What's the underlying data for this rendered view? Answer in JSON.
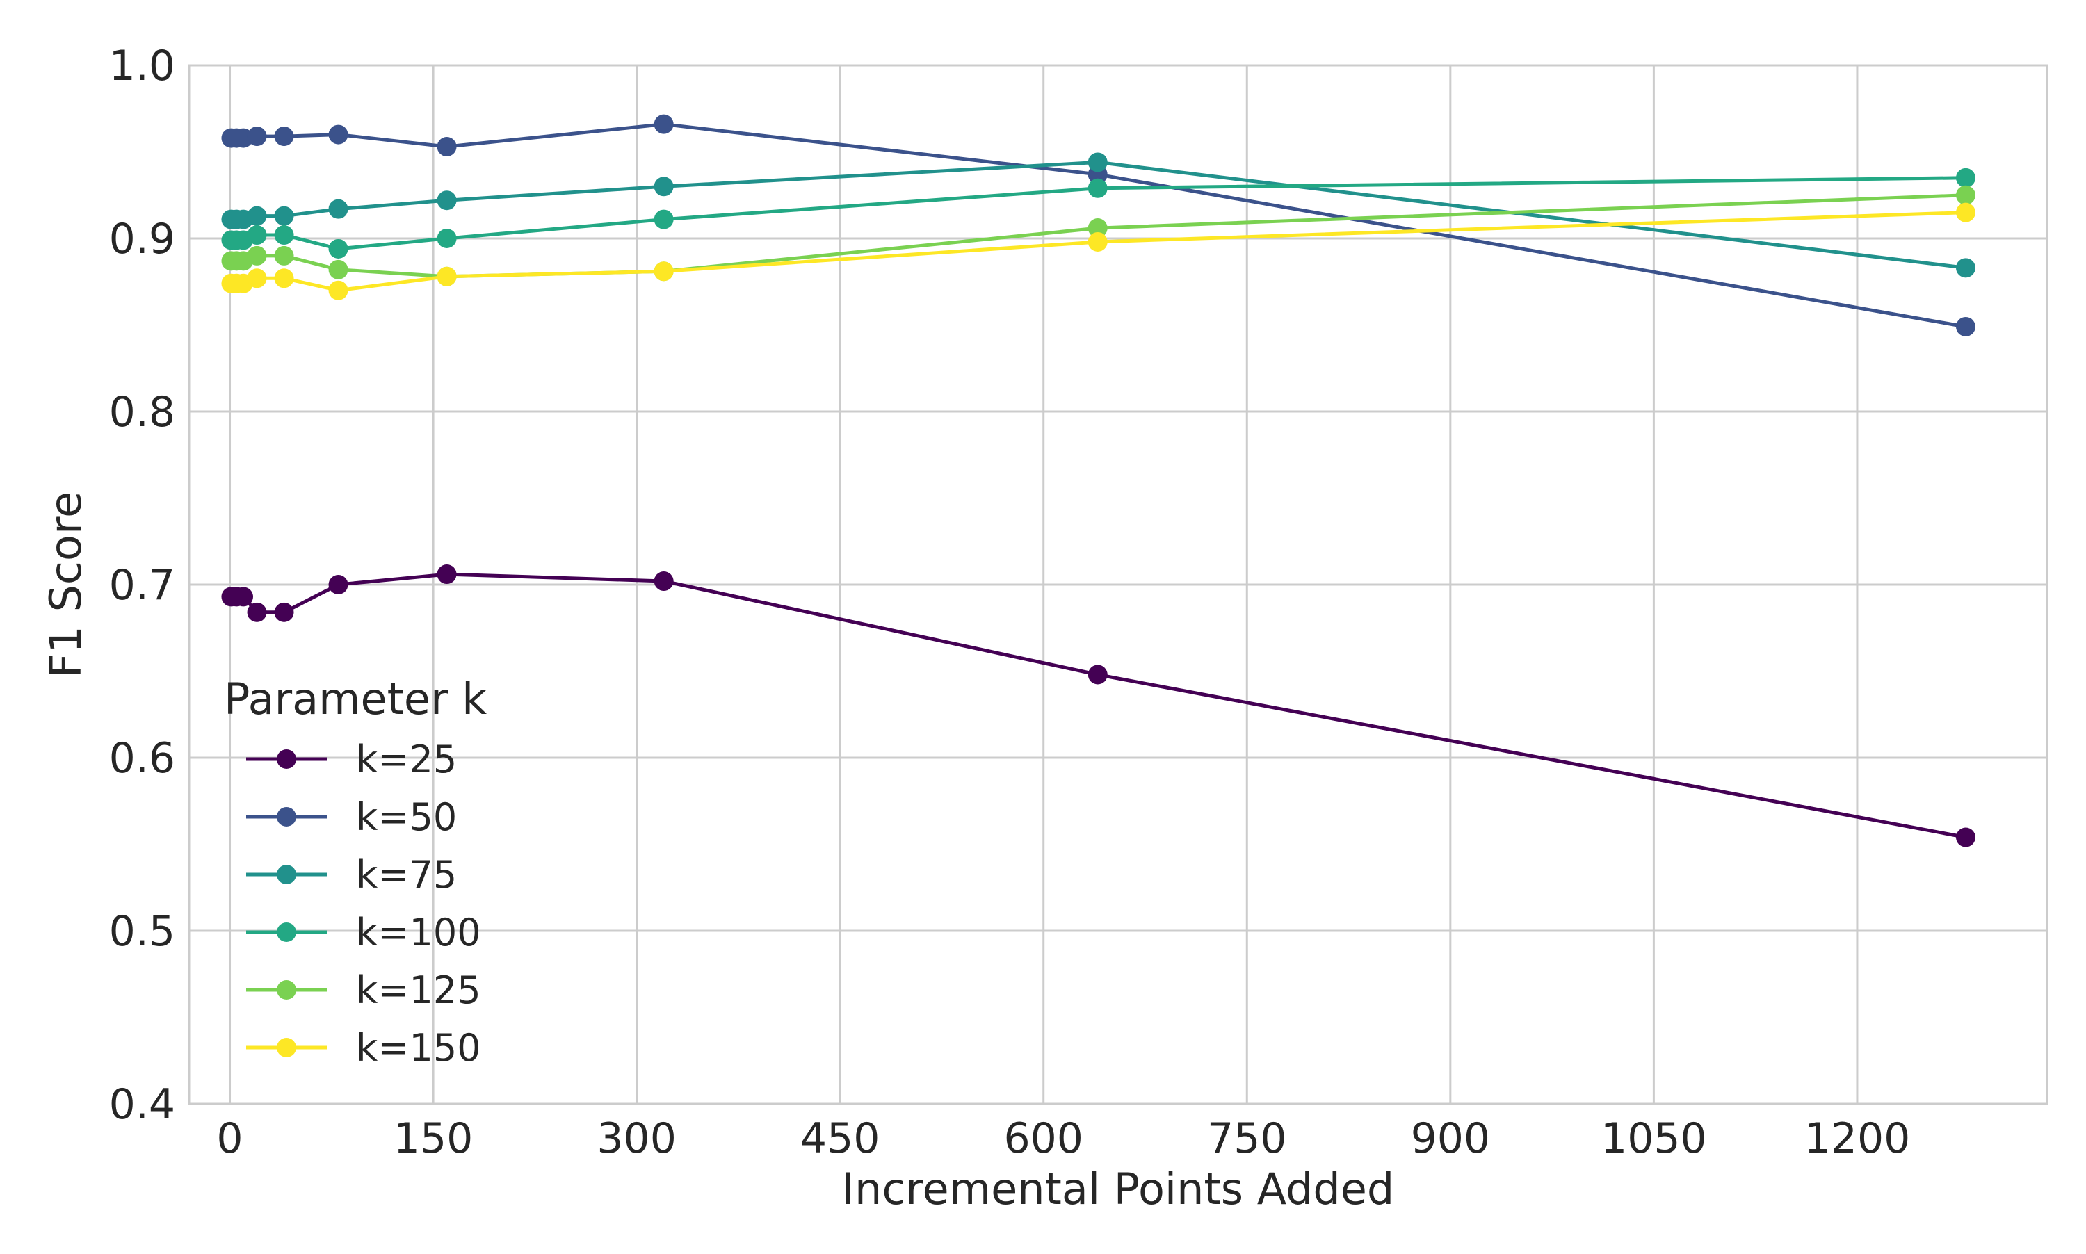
{
  "chart_data": {
    "type": "line",
    "title": "",
    "xlabel": "Incremental Points Added",
    "ylabel": "F1 Score",
    "xlim": [
      -30,
      1340
    ],
    "ylim": [
      0.4,
      1.0
    ],
    "xticks": [
      0,
      150,
      300,
      450,
      600,
      750,
      900,
      1050,
      1200
    ],
    "xtick_labels": [
      "0",
      "150",
      "300",
      "450",
      "600",
      "750",
      "900",
      "1050",
      "1200"
    ],
    "yticks": [
      0.4,
      0.5,
      0.6,
      0.7,
      0.8,
      0.9,
      1.0
    ],
    "ytick_labels": [
      "0.4",
      "0.5",
      "0.6",
      "0.7",
      "0.8",
      "0.9",
      "1.0"
    ],
    "grid": true,
    "legend": {
      "title": "Parameter k",
      "placement": "lower-left"
    },
    "x": [
      1,
      5,
      10,
      20,
      40,
      80,
      160,
      320,
      640,
      1280
    ],
    "series": [
      {
        "name": "k=25",
        "color": "#440154",
        "values": [
          0.693,
          0.693,
          0.693,
          0.684,
          0.684,
          0.7,
          0.706,
          0.702,
          0.648,
          0.554
        ]
      },
      {
        "name": "k=50",
        "color": "#3b528b",
        "values": [
          0.958,
          0.958,
          0.958,
          0.959,
          0.959,
          0.96,
          0.953,
          0.966,
          0.937,
          0.849
        ]
      },
      {
        "name": "k=75",
        "color": "#21918c",
        "values": [
          0.911,
          0.911,
          0.911,
          0.913,
          0.913,
          0.917,
          0.922,
          0.93,
          0.944,
          0.883
        ]
      },
      {
        "name": "k=100",
        "color": "#23a884",
        "values": [
          0.899,
          0.899,
          0.899,
          0.902,
          0.902,
          0.894,
          0.9,
          0.911,
          0.929,
          0.935
        ]
      },
      {
        "name": "k=125",
        "color": "#7ad151",
        "values": [
          0.887,
          0.887,
          0.887,
          0.89,
          0.89,
          0.882,
          0.878,
          0.881,
          0.906,
          0.925
        ]
      },
      {
        "name": "k=150",
        "color": "#fde725",
        "values": [
          0.874,
          0.874,
          0.874,
          0.877,
          0.877,
          0.87,
          0.878,
          0.881,
          0.898,
          0.915
        ]
      }
    ]
  }
}
